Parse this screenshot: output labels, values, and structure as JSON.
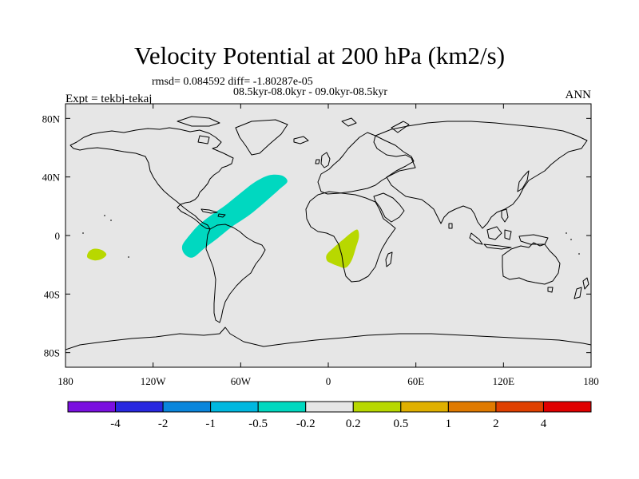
{
  "title": "Velocity Potential at 200 hPa (km2/s)",
  "stats_line": "rmsd= 0.084592 diff= -1.80287e-05",
  "period_line": "08.5kyr-08.0kyr - 09.0kyr-08.5kyr",
  "experiment_label": "Expt = tekbj-tekaj",
  "season_label": "ANN",
  "map": {
    "projection": "cylindrical-equidistant",
    "lon_range": [
      -180,
      180
    ],
    "lat_range": [
      -90,
      90
    ],
    "background_color": "#e6e6e6",
    "coastline_color": "#000000",
    "x_ticks": [
      {
        "value": -180,
        "label": "180"
      },
      {
        "value": -120,
        "label": "120W"
      },
      {
        "value": -60,
        "label": "60W"
      },
      {
        "value": 0,
        "label": "0"
      },
      {
        "value": 60,
        "label": "60E"
      },
      {
        "value": 120,
        "label": "120E"
      },
      {
        "value": 180,
        "label": "180"
      }
    ],
    "y_ticks": [
      {
        "value": 80,
        "label": "80N"
      },
      {
        "value": 40,
        "label": "40N"
      },
      {
        "value": 0,
        "label": "0"
      },
      {
        "value": -40,
        "label": "40S"
      },
      {
        "value": -80,
        "label": "80S"
      }
    ],
    "anomaly_regions": [
      {
        "name": "atlantic-negative",
        "level": "-0.5 to -0.2",
        "color": "#00d8c0",
        "outline_lonlat": [
          [
            -99,
            -12
          ],
          [
            -95,
            -15
          ],
          [
            -91,
            -14
          ],
          [
            -84,
            -8
          ],
          [
            -76,
            -2
          ],
          [
            -66,
            6
          ],
          [
            -54,
            14
          ],
          [
            -42,
            24
          ],
          [
            -33,
            32
          ],
          [
            -28,
            37
          ],
          [
            -32,
            41
          ],
          [
            -41,
            41
          ],
          [
            -51,
            36
          ],
          [
            -60,
            29
          ],
          [
            -70,
            21
          ],
          [
            -80,
            14
          ],
          [
            -89,
            7
          ],
          [
            -96,
            -1
          ],
          [
            -100,
            -7
          ]
        ]
      },
      {
        "name": "africa-positive",
        "level": "0.2 to 0.5",
        "color": "#b8d800",
        "outline_lonlat": [
          [
            -1,
            -13
          ],
          [
            4,
            -8
          ],
          [
            11,
            -2
          ],
          [
            16,
            2
          ],
          [
            20,
            4
          ],
          [
            21,
            -1
          ],
          [
            19,
            -8
          ],
          [
            16,
            -17
          ],
          [
            12,
            -22
          ],
          [
            7,
            -21
          ],
          [
            2,
            -19
          ],
          [
            -1,
            -17
          ]
        ]
      },
      {
        "name": "pacific-positive",
        "level": "0.2 to 0.5",
        "color": "#b8d800",
        "outline_lonlat": [
          [
            -164,
            -11
          ],
          [
            -160,
            -9
          ],
          [
            -155,
            -10
          ],
          [
            -152,
            -13
          ],
          [
            -155,
            -16
          ],
          [
            -160,
            -17
          ],
          [
            -165,
            -15
          ]
        ]
      }
    ]
  },
  "colorbar": {
    "labels": [
      "-4",
      "-2",
      "-1",
      "-0.5",
      "-0.2",
      "0.2",
      "0.5",
      "1",
      "2",
      "4"
    ],
    "colors": [
      "#7a10e0",
      "#2828e0",
      "#0a86dc",
      "#00b8e0",
      "#00d8c0",
      "#e6e6e6",
      "#b8d800",
      "#e0b000",
      "#e07a00",
      "#e04000",
      "#e00000"
    ]
  }
}
